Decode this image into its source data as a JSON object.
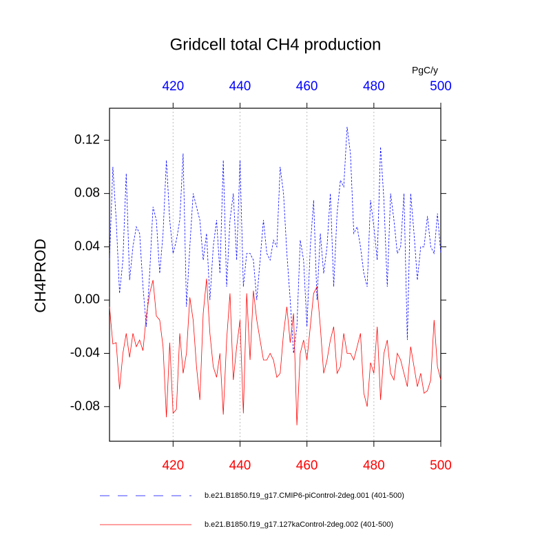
{
  "chart_data": {
    "type": "line",
    "title": "Gridcell total CH4 production",
    "units": "PgC/y",
    "y_label": "CH4PROD",
    "x": [
      401,
      402,
      403,
      404,
      405,
      406,
      407,
      408,
      409,
      410,
      411,
      412,
      413,
      414,
      415,
      416,
      417,
      418,
      419,
      420,
      421,
      422,
      423,
      424,
      425,
      426,
      427,
      428,
      429,
      430,
      431,
      432,
      433,
      434,
      435,
      436,
      437,
      438,
      439,
      440,
      441,
      442,
      443,
      444,
      445,
      446,
      447,
      448,
      449,
      450,
      451,
      452,
      453,
      454,
      455,
      456,
      457,
      458,
      459,
      460,
      461,
      462,
      463,
      464,
      465,
      466,
      467,
      468,
      469,
      470,
      471,
      472,
      473,
      474,
      475,
      476,
      477,
      478,
      479,
      480,
      481,
      482,
      483,
      484,
      485,
      486,
      487,
      488,
      489,
      490,
      491,
      492,
      493,
      494,
      495,
      496,
      497,
      498,
      499,
      500
    ],
    "series": [
      {
        "name": "b.e21.B1850.f19_g17.CMIP6-piControl-2deg.001 (401-500)",
        "color": "#0000ff",
        "dash": true,
        "values": [
          0.03,
          0.1,
          0.06,
          0.005,
          0.03,
          0.095,
          0.015,
          0.04,
          0.055,
          0.05,
          0.01,
          -0.02,
          0.02,
          0.07,
          0.06,
          0.02,
          0.05,
          0.105,
          0.06,
          0.035,
          0.045,
          0.06,
          0.11,
          -0.005,
          0.04,
          0.08,
          0.07,
          0.06,
          0.03,
          0.05,
          0.0,
          0.04,
          0.06,
          0.02,
          0.105,
          0.01,
          0.06,
          0.08,
          0.03,
          0.105,
          0.01,
          0.035,
          0.035,
          0.03,
          0.0,
          0.03,
          0.06,
          0.035,
          0.03,
          0.045,
          0.04,
          0.1,
          0.08,
          0.035,
          0.0,
          -0.04,
          -0.02,
          0.045,
          0.03,
          -0.02,
          0.04,
          0.075,
          0.0,
          0.05,
          0.02,
          0.04,
          0.08,
          0.01,
          0.065,
          0.09,
          0.085,
          0.13,
          0.11,
          0.05,
          0.055,
          0.04,
          0.02,
          0.01,
          0.075,
          0.055,
          0.03,
          0.115,
          0.075,
          0.01,
          0.08,
          0.06,
          0.035,
          0.04,
          0.08,
          -0.03,
          0.08,
          0.05,
          0.015,
          0.04,
          0.04,
          0.063,
          0.04,
          0.035,
          0.065,
          0.035
        ]
      },
      {
        "name": "b.e21.B1850.f19_g17.127kaControl-2deg.002 (401-500)",
        "color": "#ff0000",
        "dash": false,
        "values": [
          -0.005,
          -0.033,
          -0.032,
          -0.067,
          -0.04,
          -0.025,
          -0.043,
          -0.025,
          -0.035,
          -0.03,
          -0.038,
          -0.012,
          0.005,
          0.015,
          -0.012,
          -0.015,
          -0.035,
          -0.088,
          -0.032,
          -0.085,
          -0.082,
          -0.025,
          -0.055,
          -0.04,
          0.002,
          -0.015,
          -0.05,
          -0.075,
          -0.01,
          0.016,
          -0.025,
          -0.05,
          -0.058,
          -0.04,
          -0.086,
          -0.03,
          0.005,
          -0.06,
          -0.035,
          -0.015,
          -0.085,
          0.005,
          -0.045,
          0.007,
          -0.015,
          -0.03,
          -0.045,
          -0.045,
          -0.04,
          -0.045,
          -0.058,
          -0.055,
          -0.025,
          -0.005,
          -0.032,
          -0.01,
          -0.094,
          -0.04,
          -0.03,
          -0.045,
          -0.02,
          0.005,
          0.01,
          -0.02,
          -0.055,
          -0.045,
          -0.03,
          -0.02,
          -0.055,
          -0.05,
          -0.025,
          -0.04,
          -0.04,
          -0.045,
          -0.035,
          -0.025,
          -0.07,
          -0.08,
          -0.047,
          -0.055,
          -0.02,
          -0.075,
          -0.04,
          -0.03,
          -0.055,
          -0.06,
          -0.04,
          -0.045,
          -0.055,
          -0.065,
          -0.035,
          -0.05,
          -0.065,
          -0.055,
          -0.07,
          -0.068,
          -0.06,
          -0.015,
          -0.05,
          -0.06
        ]
      }
    ],
    "xlim": [
      401,
      500
    ],
    "xticks": [
      420,
      440,
      460,
      480,
      500
    ],
    "ylim": [
      -0.106,
      0.144
    ],
    "yticks": [
      -0.08,
      -0.04,
      {
        "value": 0,
        "label": "0.00"
      },
      0.04,
      0.08,
      0.12
    ],
    "xgrid": true
  }
}
